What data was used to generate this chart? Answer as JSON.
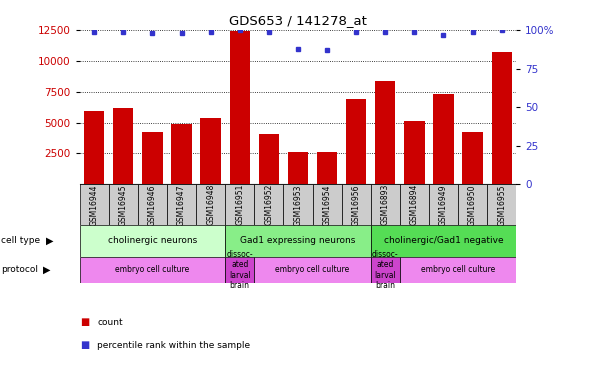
{
  "title": "GDS653 / 141278_at",
  "samples": [
    "GSM16944",
    "GSM16945",
    "GSM16946",
    "GSM16947",
    "GSM16948",
    "GSM16951",
    "GSM16952",
    "GSM16953",
    "GSM16954",
    "GSM16956",
    "GSM16893",
    "GSM16894",
    "GSM16949",
    "GSM16950",
    "GSM16955"
  ],
  "counts": [
    5900,
    6200,
    4200,
    4900,
    5400,
    12400,
    4100,
    2600,
    2600,
    6900,
    8400,
    5100,
    7300,
    4200,
    10700
  ],
  "percentile_ranks": [
    99,
    99,
    98,
    98,
    99,
    100,
    99,
    88,
    87,
    99,
    99,
    99,
    97,
    99,
    100
  ],
  "ylim_left": [
    0,
    12500
  ],
  "ylim_right": [
    0,
    100
  ],
  "yticks_left": [
    2500,
    5000,
    7500,
    10000,
    12500
  ],
  "yticks_right": [
    0,
    25,
    50,
    75,
    100
  ],
  "bar_color": "#cc0000",
  "dot_color": "#3333cc",
  "cell_type_groups": [
    {
      "label": "cholinergic neurons",
      "start": 0,
      "end": 5,
      "color": "#ccffcc"
    },
    {
      "label": "Gad1 expressing neurons",
      "start": 5,
      "end": 10,
      "color": "#66ee66"
    },
    {
      "label": "cholinergic/Gad1 negative",
      "start": 10,
      "end": 15,
      "color": "#66ee66"
    }
  ],
  "cell_type_colors": [
    "#ccffcc",
    "#88ee88",
    "#66dd66"
  ],
  "protocol_groups": [
    {
      "label": "embryo cell culture",
      "start": 0,
      "end": 5,
      "color": "#ee88ee"
    },
    {
      "label": "dissoc-\nated\nlarval\nbrain",
      "start": 5,
      "end": 6,
      "color": "#cc44cc"
    },
    {
      "label": "embryo cell culture",
      "start": 6,
      "end": 10,
      "color": "#ee88ee"
    },
    {
      "label": "dissoc-\nated\nlarval\nbrain",
      "start": 10,
      "end": 11,
      "color": "#cc44cc"
    },
    {
      "label": "embryo cell culture",
      "start": 11,
      "end": 15,
      "color": "#ee88ee"
    },
    {
      "label": "dissoc-\nated\nlarval\nbrain",
      "start": 15,
      "end": 16,
      "color": "#cc44cc"
    }
  ],
  "axis_color_left": "#cc0000",
  "axis_color_right": "#3333cc",
  "tick_bg_color": "#cccccc",
  "legend_items": [
    {
      "label": "count",
      "color": "#cc0000"
    },
    {
      "label": "percentile rank within the sample",
      "color": "#3333cc"
    }
  ]
}
